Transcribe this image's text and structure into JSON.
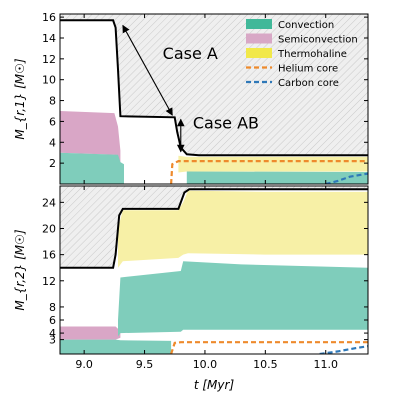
{
  "colors": {
    "convection": "#7fcdbb",
    "convection_legend": "#41b899",
    "semiconvection": "#d9a6c6",
    "semiconvection_legend": "#d8a8c6",
    "thermohaline": "#f7f0a6",
    "thermohaline_legend": "#f1e84a",
    "helium_core": "#ee8a2c",
    "carbon_core": "#2e78b8",
    "envelope_hatch_bg": "#efefef",
    "hatch_line": "#c8c8c8",
    "mass_line": "#000000"
  },
  "chart_data": [
    {
      "type": "area",
      "panel": "top",
      "ylabel": "M_{r,1} [M☉]",
      "ylim": [
        0,
        16.3
      ],
      "yticks": [
        2,
        4,
        6,
        8,
        10,
        12,
        14,
        16
      ],
      "xlim": [
        8.8,
        11.35
      ],
      "xticks": [
        9.0,
        9.5,
        10.0,
        10.5,
        11.0
      ],
      "legend": {
        "placement": "top-right",
        "entries": [
          {
            "label": "Convection",
            "kind": "patch",
            "color_key": "convection_legend"
          },
          {
            "label": "Semiconvection",
            "kind": "patch",
            "color_key": "semiconvection_legend"
          },
          {
            "label": "Thermohaline",
            "kind": "patch",
            "color_key": "thermohaline_legend"
          },
          {
            "label": "Helium core",
            "kind": "dashed",
            "color_key": "helium_core"
          },
          {
            "label": "Carbon core",
            "kind": "dashed",
            "color_key": "carbon_core"
          }
        ]
      },
      "annotations": [
        {
          "text": "Case A",
          "x": 9.65,
          "y": 12.0
        },
        {
          "text": "Case AB",
          "x": 9.9,
          "y": 5.3
        }
      ],
      "arrows": [
        {
          "from": [
            9.32,
            15.2
          ],
          "to": [
            9.73,
            6.6
          ]
        },
        {
          "from": [
            9.8,
            6.2
          ],
          "to": [
            9.8,
            3.1
          ]
        }
      ],
      "total_mass": {
        "x": [
          8.8,
          9.24,
          9.26,
          9.28,
          9.3,
          9.75,
          9.77,
          9.8,
          9.85,
          9.95,
          11.35
        ],
        "y": [
          15.7,
          15.7,
          15.0,
          11.0,
          6.5,
          6.4,
          5.0,
          3.5,
          2.85,
          2.75,
          2.75
        ]
      },
      "convection": {
        "x": [
          8.8,
          9.28,
          9.3,
          9.33
        ],
        "upper": [
          3.0,
          2.8,
          2.1,
          1.9
        ],
        "lower": [
          0,
          0,
          0,
          0
        ]
      },
      "convection_late": {
        "x": [
          9.85,
          11.35
        ],
        "upper": [
          1.2,
          1.15
        ],
        "lower": [
          0,
          0
        ]
      },
      "semiconvection": {
        "x": [
          8.8,
          9.25,
          9.28,
          9.3
        ],
        "upper": [
          7.0,
          6.8,
          5.5,
          3.2
        ],
        "lower": [
          3.0,
          2.8,
          2.2,
          1.9
        ]
      },
      "thermohaline": {
        "x": [
          9.78,
          9.85,
          11.35
        ],
        "upper": [
          2.7,
          2.6,
          2.6
        ],
        "lower": [
          1.1,
          1.2,
          1.2
        ]
      },
      "helium_core": {
        "x": [
          9.72,
          9.73,
          9.78,
          11.35
        ],
        "y": [
          0,
          1.9,
          2.2,
          2.2
        ]
      },
      "carbon_core": {
        "x": [
          11.0,
          11.1,
          11.2,
          11.35
        ],
        "y": [
          0,
          0.3,
          0.7,
          1.0
        ]
      }
    },
    {
      "type": "area",
      "panel": "bottom",
      "ylabel": "M_{r,2} [M☉]",
      "ylim": [
        0.8,
        26.5
      ],
      "yticks": [
        3,
        4,
        6,
        8,
        12,
        16,
        20,
        24
      ],
      "xlim": [
        8.8,
        11.35
      ],
      "xticks": [
        9.0,
        9.5,
        10.0,
        10.5,
        11.0
      ],
      "xlabel": "t [Myr]",
      "total_mass": {
        "x": [
          8.8,
          9.24,
          9.26,
          9.29,
          9.32,
          9.78,
          9.8,
          9.83,
          9.87,
          10.0,
          11.35
        ],
        "y": [
          14.0,
          14.0,
          16.0,
          22.0,
          23.0,
          23.0,
          24.0,
          25.5,
          26.0,
          26.0,
          26.0
        ]
      },
      "thermohaline": {
        "x": [
          9.28,
          9.32,
          9.78,
          9.82,
          9.86,
          10.5,
          11.0,
          11.35
        ],
        "upper": [
          20.0,
          22.8,
          22.8,
          24.0,
          25.8,
          25.6,
          25.6,
          25.6
        ],
        "lower": [
          14.0,
          15.0,
          15.5,
          16.0,
          16.2,
          16.0,
          16.0,
          16.0
        ]
      },
      "convection": {
        "x": [
          9.28,
          9.3,
          9.8,
          9.82,
          10.3,
          11.35
        ],
        "upper": [
          6.0,
          12.5,
          13.5,
          15.0,
          14.5,
          14.0
        ],
        "lower": [
          3.5,
          4.0,
          4.2,
          4.5,
          4.5,
          4.5
        ]
      },
      "semiconvection": {
        "x": [
          8.8,
          9.26,
          9.3
        ],
        "upper": [
          5.0,
          5.0,
          4.3
        ],
        "lower": [
          3.0,
          3.0,
          3.3
        ]
      },
      "convection_core": {
        "x": [
          8.8,
          9.26,
          9.3,
          9.72
        ],
        "upper": [
          3.0,
          3.0,
          2.9,
          2.8
        ],
        "lower": [
          0.8,
          0.8,
          0.8,
          0.8
        ]
      },
      "helium_core": {
        "x": [
          9.72,
          9.75,
          9.8,
          11.35
        ],
        "y": [
          0.8,
          2.5,
          2.6,
          2.6
        ]
      },
      "carbon_core": {
        "x": [
          10.95,
          11.1,
          11.25,
          11.35
        ],
        "y": [
          0.8,
          1.2,
          1.7,
          2.0
        ]
      }
    }
  ]
}
